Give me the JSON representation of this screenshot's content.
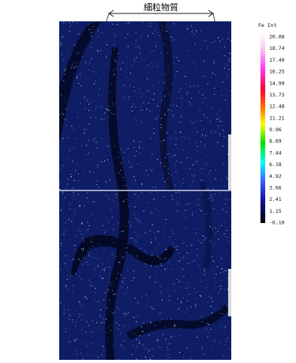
{
  "annotation": "細粒物質",
  "scale": {
    "header": "Fe Int",
    "labels": [
      "20.08",
      "18.74",
      "17.49",
      "16.25",
      "14.99",
      "13.73",
      "12.48",
      "11.21",
      "9.96",
      "8.69",
      "7.44",
      "6.18",
      "4.92",
      "3.66",
      "2.41",
      "1.15",
      "-0.10"
    ]
  }
}
